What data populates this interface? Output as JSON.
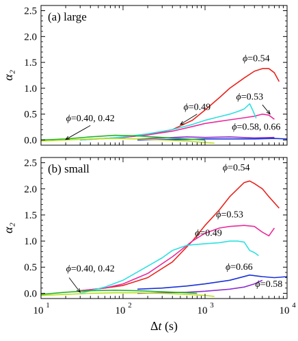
{
  "chart_data": [
    {
      "type": "line",
      "panel_label": "(a) large",
      "ylabel": "α₂",
      "xlabel": "",
      "xscale": "log",
      "xlim": [
        10,
        10000
      ],
      "ylim": [
        -0.1,
        2.6
      ],
      "yticks": [
        "0.0",
        "0.5",
        "1.0",
        "1.5",
        "2.0",
        "2.5"
      ],
      "ytick_values": [
        0,
        0.5,
        1.0,
        1.5,
        2.0,
        2.5
      ],
      "annotations": [
        {
          "text": "ϕ=0.54",
          "x": 4200,
          "y": 1.52
        },
        {
          "text": "ϕ=0.53",
          "x": 3500,
          "y": 0.78
        },
        {
          "text": "ϕ=0.49",
          "x": 800,
          "y": 0.58
        },
        {
          "text": "ϕ=0.58, 0.66",
          "x": 4200,
          "y": 0.2
        },
        {
          "text": "ϕ=0.40, 0.42",
          "x": 40,
          "y": 0.36
        }
      ],
      "series": [
        {
          "color": "#e8221c",
          "x": [
            30,
            60,
            100,
            200,
            400,
            700,
            1000,
            1500,
            2000,
            3000,
            4000,
            5000,
            6000,
            7000,
            8000
          ],
          "y": [
            0.01,
            0.03,
            0.05,
            0.1,
            0.2,
            0.38,
            0.58,
            0.82,
            1.0,
            1.2,
            1.33,
            1.38,
            1.38,
            1.3,
            1.13
          ]
        },
        {
          "color": "#ea2a9c",
          "x": [
            30,
            60,
            100,
            200,
            400,
            700,
            1000,
            1500,
            2000,
            3000,
            4000,
            5000,
            6000,
            7000
          ],
          "y": [
            0.0,
            0.03,
            0.05,
            0.1,
            0.17,
            0.26,
            0.32,
            0.36,
            0.39,
            0.43,
            0.46,
            0.5,
            0.48,
            0.4
          ]
        },
        {
          "color": "#2de0e0",
          "x": [
            30,
            60,
            100,
            200,
            400,
            700,
            1000,
            1500,
            2000,
            2500,
            3000,
            3500,
            3800,
            4200
          ],
          "y": [
            0.0,
            0.03,
            0.06,
            0.12,
            0.2,
            0.3,
            0.38,
            0.45,
            0.5,
            0.55,
            0.6,
            0.7,
            0.58,
            0.42
          ]
        },
        {
          "color": "#8a2fd0",
          "x": [
            150,
            300,
            600,
            1000,
            2000,
            4000,
            7000
          ],
          "y": [
            0.02,
            0.04,
            0.06,
            0.05,
            0.06,
            0.04,
            0.05
          ]
        },
        {
          "color": "#1830d8",
          "x": [
            150,
            300,
            600,
            1000,
            2000,
            4000,
            7000,
            10000
          ],
          "y": [
            0.0,
            0.01,
            0.01,
            0.02,
            0.02,
            0.02,
            0.03,
            0.02
          ]
        },
        {
          "color": "#22b422",
          "x": [
            10,
            20,
            40,
            80,
            150,
            300,
            600,
            1000
          ],
          "y": [
            0.0,
            0.02,
            0.06,
            0.09,
            0.08,
            0.05,
            0.02,
            0.0
          ]
        },
        {
          "color": "#b8e020",
          "x": [
            10,
            20,
            40,
            80,
            150,
            300,
            600,
            1000,
            1300
          ],
          "y": [
            -0.02,
            0.0,
            0.02,
            0.03,
            0.02,
            0.0,
            -0.02,
            -0.05,
            -0.06
          ]
        }
      ]
    },
    {
      "type": "line",
      "panel_label": "(b) small",
      "ylabel": "α₂",
      "xlabel": "Δt (s)",
      "xscale": "log",
      "xlim": [
        10,
        10000
      ],
      "ylim": [
        -0.1,
        2.6
      ],
      "xticks": [
        "10",
        "10",
        "10",
        "10"
      ],
      "xtick_exponents": [
        "1",
        "2",
        "3",
        "4"
      ],
      "xtick_values": [
        10,
        100,
        1000,
        10000
      ],
      "yticks": [
        "0.0",
        "0.5",
        "1.0",
        "1.5",
        "2.0",
        "2.5"
      ],
      "ytick_values": [
        0,
        0.5,
        1.0,
        1.5,
        2.0,
        2.5
      ],
      "annotations": [
        {
          "text": "ϕ=0.54",
          "x": 2400,
          "y": 2.35
        },
        {
          "text": "ϕ=0.53",
          "x": 2000,
          "y": 1.45
        },
        {
          "text": "ϕ=0.49",
          "x": 1100,
          "y": 1.1
        },
        {
          "text": "ϕ=0.66",
          "x": 2600,
          "y": 0.45
        },
        {
          "text": "ϕ=0.58",
          "x": 6000,
          "y": 0.12
        },
        {
          "text": "ϕ=0.40, 0.42",
          "x": 40,
          "y": 0.42
        }
      ],
      "series": [
        {
          "color": "#e8221c",
          "x": [
            30,
            60,
            100,
            200,
            400,
            700,
            1000,
            1500,
            2000,
            2500,
            3000,
            3500,
            4000,
            5000,
            6000,
            8000
          ],
          "y": [
            0.05,
            0.1,
            0.15,
            0.3,
            0.6,
            1.0,
            1.3,
            1.6,
            1.85,
            2.0,
            2.12,
            2.15,
            2.1,
            2.0,
            1.85,
            1.63
          ]
        },
        {
          "color": "#ea2a9c",
          "x": [
            30,
            60,
            100,
            200,
            400,
            700,
            1000,
            1500,
            2000,
            3000,
            4000,
            5000,
            6000,
            7000
          ],
          "y": [
            0.05,
            0.1,
            0.18,
            0.38,
            0.7,
            1.0,
            1.15,
            1.25,
            1.28,
            1.3,
            1.28,
            1.17,
            1.1,
            1.25
          ]
        },
        {
          "color": "#2de0e0",
          "x": [
            30,
            60,
            100,
            200,
            300,
            400,
            600,
            1000,
            1500,
            2000,
            2500,
            3000,
            3500,
            4000,
            4500
          ],
          "y": [
            0.0,
            0.12,
            0.25,
            0.52,
            0.68,
            0.82,
            0.92,
            0.95,
            0.97,
            1.0,
            1.0,
            0.98,
            0.82,
            0.78,
            0.72
          ]
        },
        {
          "color": "#1830d8",
          "x": [
            150,
            300,
            600,
            1000,
            2000,
            3500,
            5000,
            7000,
            10000
          ],
          "y": [
            0.08,
            0.1,
            0.14,
            0.18,
            0.25,
            0.35,
            0.32,
            0.3,
            0.32
          ]
        },
        {
          "color": "#8a2fd0",
          "x": [
            150,
            300,
            600,
            1000,
            2000,
            3000,
            4000,
            5000
          ],
          "y": [
            0.0,
            0.01,
            0.02,
            0.04,
            0.08,
            0.12,
            0.18,
            0.25
          ]
        },
        {
          "color": "#22b422",
          "x": [
            10,
            20,
            40,
            80,
            150,
            300,
            600,
            800
          ],
          "y": [
            -0.02,
            0.02,
            0.05,
            0.06,
            0.05,
            0.03,
            0.01,
            0.0
          ]
        },
        {
          "color": "#b8e020",
          "x": [
            10,
            20,
            40,
            80,
            150,
            300,
            600,
            1000,
            1300
          ],
          "y": [
            -0.04,
            -0.02,
            0.0,
            0.01,
            0.01,
            0.0,
            -0.02,
            -0.04,
            -0.06
          ]
        }
      ]
    }
  ]
}
